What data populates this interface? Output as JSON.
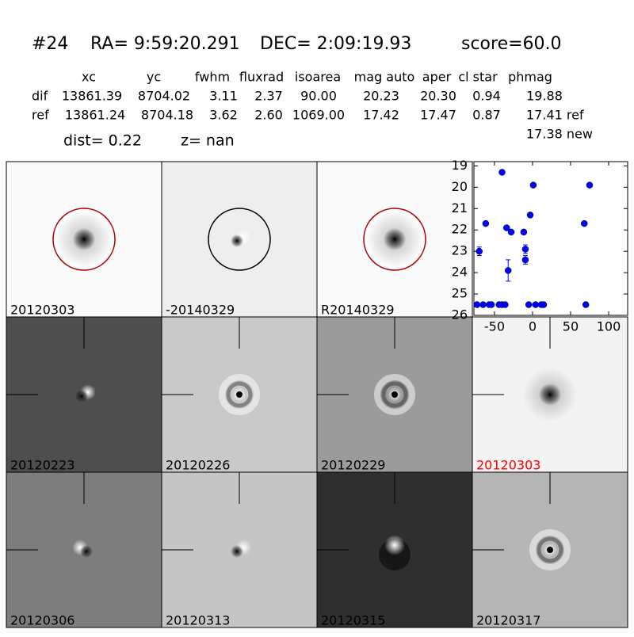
{
  "header": {
    "id": "#24",
    "ra": "RA= 9:59:20.291",
    "dec": "DEC= 2:09:19.93",
    "score": "score=60.0"
  },
  "table": {
    "columns": [
      "xc",
      "yc",
      "fwhm",
      "fluxrad",
      "isoarea",
      "mag auto",
      "aper",
      "cl star",
      "phmag"
    ],
    "rows": [
      {
        "label": "dif",
        "cells": [
          "13861.39",
          "8704.02",
          "3.11",
          "2.37",
          "90.00",
          "20.23",
          "20.30",
          "0.94",
          "19.88"
        ]
      },
      {
        "label": "ref",
        "cells": [
          "13861.24",
          "8704.18",
          "3.62",
          "2.60",
          "1069.00",
          "17.42",
          "17.47",
          "0.87",
          "17.41 ref"
        ]
      }
    ],
    "extra": "17.38 new"
  },
  "dist": "dist=  0.22",
  "z": "z=   nan",
  "panels": [
    {
      "label": "20120303"
    },
    {
      "label": "-20140329"
    },
    {
      "label": "R20140329"
    },
    {
      "label": "20120223"
    },
    {
      "label": "20120226"
    },
    {
      "label": "20120229"
    },
    {
      "label": "20120303"
    },
    {
      "label": "20120306"
    },
    {
      "label": "20120313"
    },
    {
      "label": "20120315"
    },
    {
      "label": "20120317"
    }
  ],
  "chart_data": {
    "type": "scatter",
    "x": [
      -70,
      -61.5,
      -73,
      -65,
      -57,
      -54,
      -44,
      -40,
      -36,
      -40,
      -34,
      -28,
      -32,
      -11.5,
      -9.4,
      -9.4,
      -5,
      -3,
      1,
      4,
      11.5,
      14.6,
      68,
      70,
      75
    ],
    "series": [
      {
        "name": "mag",
        "color": "#0000ff",
        "values": [
          23.0,
          21.7,
          25.5,
          25.5,
          25.5,
          25.5,
          25.5,
          25.5,
          25.5,
          19.3,
          21.9,
          22.1,
          23.9,
          22.1,
          22.9,
          23.4,
          25.5,
          21.3,
          19.9,
          25.5,
          25.5,
          25.5,
          21.7,
          25.5,
          19.9
        ],
        "errors": [
          0.2,
          null,
          null,
          null,
          null,
          null,
          null,
          null,
          null,
          null,
          null,
          null,
          0.5,
          0.1,
          0.2,
          0.2,
          null,
          null,
          null,
          null,
          null,
          null,
          null,
          null,
          null
        ]
      }
    ],
    "xlim": [
      -77,
      125
    ],
    "ylim": [
      26,
      18.8
    ],
    "xticks": [
      -50,
      0,
      50,
      100
    ],
    "yticks": [
      19,
      20,
      21,
      22,
      23,
      24,
      25,
      26
    ]
  }
}
